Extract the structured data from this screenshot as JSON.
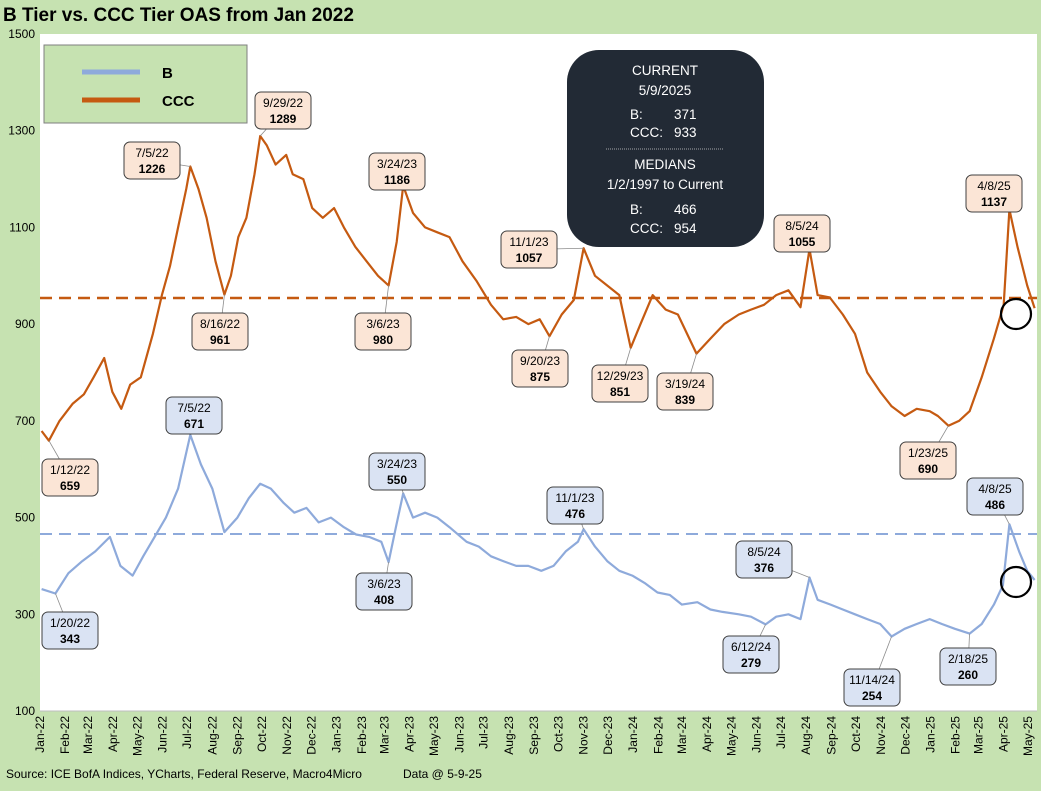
{
  "title": "B Tier vs. CCC Tier OAS from Jan 2022",
  "footer": {
    "source": "Source: ICE BofA Indices, YCharts, Federal Reserve, Macro4Micro",
    "data_at": "Data @ 5-9-25"
  },
  "colors": {
    "background": "#c6e2b1",
    "plot_bg": "#ffffff",
    "b_series": "#8eaadb",
    "ccc_series": "#c55a11",
    "b_label_fill": "#dae3f3",
    "ccc_label_fill": "#fbe5d6",
    "info_box": "#222a35"
  },
  "info_box": {
    "line1": "CURRENT",
    "line2": "5/9/2025",
    "b_label": "B:",
    "b_value": "371",
    "ccc_label": "CCC:",
    "ccc_value": "933",
    "line5": "MEDIANS",
    "line6": "1/2/1997 to Current",
    "b_median_label": "B:",
    "b_median_value": "466",
    "ccc_median_label": "CCC:",
    "ccc_median_value": "954"
  },
  "chart_data": {
    "type": "line",
    "title": "B Tier vs. CCC Tier OAS from Jan 2022",
    "ylim": [
      100,
      1500
    ],
    "yticks": [
      100,
      300,
      500,
      700,
      900,
      1100,
      1300,
      1500
    ],
    "xlabel": "",
    "ylabel": "",
    "x_range": [
      "2022-01-01",
      "2025-05-12"
    ],
    "x_tick_labels": [
      "Jan-22",
      "Feb-22",
      "Mar-22",
      "Apr-22",
      "May-22",
      "Jun-22",
      "Jul-22",
      "Aug-22",
      "Sep-22",
      "Oct-22",
      "Nov-22",
      "Dec-22",
      "Jan-23",
      "Feb-23",
      "Mar-23",
      "Apr-23",
      "May-23",
      "Jun-23",
      "Jul-23",
      "Aug-23",
      "Sep-23",
      "Oct-23",
      "Nov-23",
      "Dec-23",
      "Jan-24",
      "Feb-24",
      "Mar-24",
      "Apr-24",
      "May-24",
      "Jun-24",
      "Jul-24",
      "Aug-24",
      "Sep-24",
      "Oct-24",
      "Nov-24",
      "Dec-24",
      "Jan-25",
      "Feb-25",
      "Mar-25",
      "Apr-25",
      "May-25"
    ],
    "legend": {
      "position": "top-left",
      "entries": [
        "B",
        "CCC"
      ]
    },
    "grid": false,
    "medians": {
      "B": 466,
      "CCC": 954
    },
    "series": [
      {
        "name": "CCC",
        "points": [
          [
            "2022-01-03",
            679
          ],
          [
            "2022-01-12",
            659
          ],
          [
            "2022-01-25",
            700
          ],
          [
            "2022-02-10",
            735
          ],
          [
            "2022-02-24",
            755
          ],
          [
            "2022-03-08",
            790
          ],
          [
            "2022-03-21",
            830
          ],
          [
            "2022-03-31",
            760
          ],
          [
            "2022-04-11",
            725
          ],
          [
            "2022-04-22",
            775
          ],
          [
            "2022-05-05",
            790
          ],
          [
            "2022-05-20",
            880
          ],
          [
            "2022-05-31",
            960
          ],
          [
            "2022-06-10",
            1020
          ],
          [
            "2022-06-20",
            1100
          ],
          [
            "2022-06-30",
            1180
          ],
          [
            "2022-07-05",
            1226
          ],
          [
            "2022-07-15",
            1180
          ],
          [
            "2022-07-25",
            1120
          ],
          [
            "2022-08-05",
            1030
          ],
          [
            "2022-08-16",
            961
          ],
          [
            "2022-08-24",
            1000
          ],
          [
            "2022-09-02",
            1080
          ],
          [
            "2022-09-12",
            1120
          ],
          [
            "2022-09-22",
            1210
          ],
          [
            "2022-09-29",
            1289
          ],
          [
            "2022-10-07",
            1270
          ],
          [
            "2022-10-18",
            1230
          ],
          [
            "2022-10-31",
            1250
          ],
          [
            "2022-11-08",
            1210
          ],
          [
            "2022-11-21",
            1200
          ],
          [
            "2022-12-02",
            1140
          ],
          [
            "2022-12-15",
            1120
          ],
          [
            "2022-12-29",
            1140
          ],
          [
            "2023-01-10",
            1100
          ],
          [
            "2023-01-24",
            1060
          ],
          [
            "2023-02-07",
            1030
          ],
          [
            "2023-02-21",
            1000
          ],
          [
            "2023-03-06",
            980
          ],
          [
            "2023-03-16",
            1070
          ],
          [
            "2023-03-24",
            1186
          ],
          [
            "2023-04-05",
            1130
          ],
          [
            "2023-04-20",
            1100
          ],
          [
            "2023-05-05",
            1090
          ],
          [
            "2023-05-20",
            1080
          ],
          [
            "2023-06-05",
            1030
          ],
          [
            "2023-06-22",
            990
          ],
          [
            "2023-07-10",
            940
          ],
          [
            "2023-07-25",
            910
          ],
          [
            "2023-08-10",
            915
          ],
          [
            "2023-08-25",
            900
          ],
          [
            "2023-09-08",
            910
          ],
          [
            "2023-09-20",
            875
          ],
          [
            "2023-10-05",
            920
          ],
          [
            "2023-10-20",
            950
          ],
          [
            "2023-11-01",
            1057
          ],
          [
            "2023-11-15",
            1000
          ],
          [
            "2023-11-30",
            980
          ],
          [
            "2023-12-15",
            960
          ],
          [
            "2023-12-29",
            851
          ],
          [
            "2024-01-10",
            900
          ],
          [
            "2024-01-25",
            960
          ],
          [
            "2024-02-10",
            930
          ],
          [
            "2024-02-25",
            920
          ],
          [
            "2024-03-19",
            839
          ],
          [
            "2024-04-05",
            870
          ],
          [
            "2024-04-22",
            900
          ],
          [
            "2024-05-10",
            920
          ],
          [
            "2024-05-25",
            930
          ],
          [
            "2024-06-10",
            940
          ],
          [
            "2024-06-25",
            960
          ],
          [
            "2024-07-10",
            970
          ],
          [
            "2024-07-25",
            935
          ],
          [
            "2024-08-05",
            1055
          ],
          [
            "2024-08-15",
            960
          ],
          [
            "2024-08-30",
            955
          ],
          [
            "2024-09-15",
            920
          ],
          [
            "2024-09-30",
            880
          ],
          [
            "2024-10-15",
            800
          ],
          [
            "2024-10-31",
            760
          ],
          [
            "2024-11-14",
            730
          ],
          [
            "2024-11-30",
            710
          ],
          [
            "2024-12-15",
            725
          ],
          [
            "2024-12-31",
            720
          ],
          [
            "2025-01-10",
            710
          ],
          [
            "2025-01-23",
            690
          ],
          [
            "2025-02-05",
            700
          ],
          [
            "2025-02-18",
            720
          ],
          [
            "2025-03-05",
            790
          ],
          [
            "2025-03-20",
            870
          ],
          [
            "2025-04-01",
            940
          ],
          [
            "2025-04-08",
            1137
          ],
          [
            "2025-04-18",
            1060
          ],
          [
            "2025-04-30",
            980
          ],
          [
            "2025-05-09",
            933
          ]
        ]
      },
      {
        "name": "B",
        "points": [
          [
            "2022-01-03",
            352
          ],
          [
            "2022-01-20",
            343
          ],
          [
            "2022-02-05",
            385
          ],
          [
            "2022-02-22",
            410
          ],
          [
            "2022-03-10",
            430
          ],
          [
            "2022-03-28",
            460
          ],
          [
            "2022-04-10",
            400
          ],
          [
            "2022-04-25",
            380
          ],
          [
            "2022-05-08",
            420
          ],
          [
            "2022-05-22",
            460
          ],
          [
            "2022-06-05",
            500
          ],
          [
            "2022-06-20",
            560
          ],
          [
            "2022-07-05",
            671
          ],
          [
            "2022-07-18",
            610
          ],
          [
            "2022-08-01",
            560
          ],
          [
            "2022-08-16",
            470
          ],
          [
            "2022-09-01",
            500
          ],
          [
            "2022-09-15",
            540
          ],
          [
            "2022-09-29",
            570
          ],
          [
            "2022-10-12",
            560
          ],
          [
            "2022-10-28",
            530
          ],
          [
            "2022-11-10",
            510
          ],
          [
            "2022-11-25",
            520
          ],
          [
            "2022-12-10",
            490
          ],
          [
            "2022-12-25",
            500
          ],
          [
            "2023-01-10",
            480
          ],
          [
            "2023-01-25",
            465
          ],
          [
            "2023-02-10",
            460
          ],
          [
            "2023-02-25",
            450
          ],
          [
            "2023-03-06",
            408
          ],
          [
            "2023-03-15",
            480
          ],
          [
            "2023-03-24",
            550
          ],
          [
            "2023-04-05",
            500
          ],
          [
            "2023-04-20",
            510
          ],
          [
            "2023-05-05",
            500
          ],
          [
            "2023-05-20",
            480
          ],
          [
            "2023-06-10",
            450
          ],
          [
            "2023-06-25",
            440
          ],
          [
            "2023-07-10",
            420
          ],
          [
            "2023-07-25",
            410
          ],
          [
            "2023-08-10",
            400
          ],
          [
            "2023-08-25",
            400
          ],
          [
            "2023-09-10",
            390
          ],
          [
            "2023-09-25",
            400
          ],
          [
            "2023-10-10",
            430
          ],
          [
            "2023-10-25",
            450
          ],
          [
            "2023-11-01",
            476
          ],
          [
            "2023-11-15",
            440
          ],
          [
            "2023-11-30",
            410
          ],
          [
            "2023-12-15",
            390
          ],
          [
            "2023-12-31",
            380
          ],
          [
            "2024-01-15",
            365
          ],
          [
            "2024-01-31",
            345
          ],
          [
            "2024-02-15",
            340
          ],
          [
            "2024-03-01",
            320
          ],
          [
            "2024-03-20",
            325
          ],
          [
            "2024-04-05",
            310
          ],
          [
            "2024-04-20",
            305
          ],
          [
            "2024-05-10",
            300
          ],
          [
            "2024-05-25",
            295
          ],
          [
            "2024-06-12",
            279
          ],
          [
            "2024-06-25",
            295
          ],
          [
            "2024-07-10",
            300
          ],
          [
            "2024-07-25",
            290
          ],
          [
            "2024-08-05",
            376
          ],
          [
            "2024-08-15",
            330
          ],
          [
            "2024-08-31",
            320
          ],
          [
            "2024-09-15",
            310
          ],
          [
            "2024-09-30",
            300
          ],
          [
            "2024-10-15",
            290
          ],
          [
            "2024-10-31",
            280
          ],
          [
            "2024-11-14",
            254
          ],
          [
            "2024-11-30",
            270
          ],
          [
            "2024-12-15",
            280
          ],
          [
            "2024-12-31",
            290
          ],
          [
            "2025-01-15",
            280
          ],
          [
            "2025-01-31",
            270
          ],
          [
            "2025-02-18",
            260
          ],
          [
            "2025-03-05",
            280
          ],
          [
            "2025-03-20",
            320
          ],
          [
            "2025-03-31",
            360
          ],
          [
            "2025-04-08",
            486
          ],
          [
            "2025-04-20",
            430
          ],
          [
            "2025-04-30",
            390
          ],
          [
            "2025-05-09",
            371
          ]
        ]
      }
    ],
    "annotations": [
      {
        "series": "CCC",
        "date": "2022-01-12",
        "value": 659,
        "line1": "1/12/22",
        "line2": "659"
      },
      {
        "series": "CCC",
        "date": "2022-07-05",
        "value": 1226,
        "line1": "7/5/22",
        "line2": "1226"
      },
      {
        "series": "CCC",
        "date": "2022-09-29",
        "value": 1289,
        "line1": "9/29/22",
        "line2": "1289"
      },
      {
        "series": "CCC",
        "date": "2022-08-16",
        "value": 961,
        "line1": "8/16/22",
        "line2": "961"
      },
      {
        "series": "CCC",
        "date": "2023-03-24",
        "value": 1186,
        "line1": "3/24/23",
        "line2": "1186"
      },
      {
        "series": "CCC",
        "date": "2023-03-06",
        "value": 980,
        "line1": "3/6/23",
        "line2": "980"
      },
      {
        "series": "CCC",
        "date": "2023-11-01",
        "value": 1057,
        "line1": "11/1/23",
        "line2": "1057"
      },
      {
        "series": "CCC",
        "date": "2023-09-20",
        "value": 875,
        "line1": "9/20/23",
        "line2": "875"
      },
      {
        "series": "CCC",
        "date": "2023-12-29",
        "value": 851,
        "line1": "12/29/23",
        "line2": "851"
      },
      {
        "series": "CCC",
        "date": "2024-03-19",
        "value": 839,
        "line1": "3/19/24",
        "line2": "839"
      },
      {
        "series": "CCC",
        "date": "2024-08-05",
        "value": 1055,
        "line1": "8/5/24",
        "line2": "1055"
      },
      {
        "series": "CCC",
        "date": "2025-04-08",
        "value": 1137,
        "line1": "4/8/25",
        "line2": "1137"
      },
      {
        "series": "CCC",
        "date": "2025-01-23",
        "value": 690,
        "line1": "1/23/25",
        "line2": "690"
      },
      {
        "series": "B",
        "date": "2022-01-20",
        "value": 343,
        "line1": "1/20/22",
        "line2": "343"
      },
      {
        "series": "B",
        "date": "2022-07-05",
        "value": 671,
        "line1": "7/5/22",
        "line2": "671"
      },
      {
        "series": "B",
        "date": "2023-03-24",
        "value": 550,
        "line1": "3/24/23",
        "line2": "550"
      },
      {
        "series": "B",
        "date": "2023-03-06",
        "value": 408,
        "line1": "3/6/23",
        "line2": "408"
      },
      {
        "series": "B",
        "date": "2023-11-01",
        "value": 476,
        "line1": "11/1/23",
        "line2": "476"
      },
      {
        "series": "B",
        "date": "2024-08-05",
        "value": 376,
        "line1": "8/5/24",
        "line2": "376"
      },
      {
        "series": "B",
        "date": "2024-06-12",
        "value": 279,
        "line1": "6/12/24",
        "line2": "279"
      },
      {
        "series": "B",
        "date": "2024-11-14",
        "value": 254,
        "line1": "11/14/24",
        "line2": "254"
      },
      {
        "series": "B",
        "date": "2025-02-18",
        "value": 260,
        "line1": "2/18/25",
        "line2": "260"
      },
      {
        "series": "B",
        "date": "2025-04-08",
        "value": 486,
        "line1": "4/8/25",
        "line2": "486"
      }
    ]
  }
}
